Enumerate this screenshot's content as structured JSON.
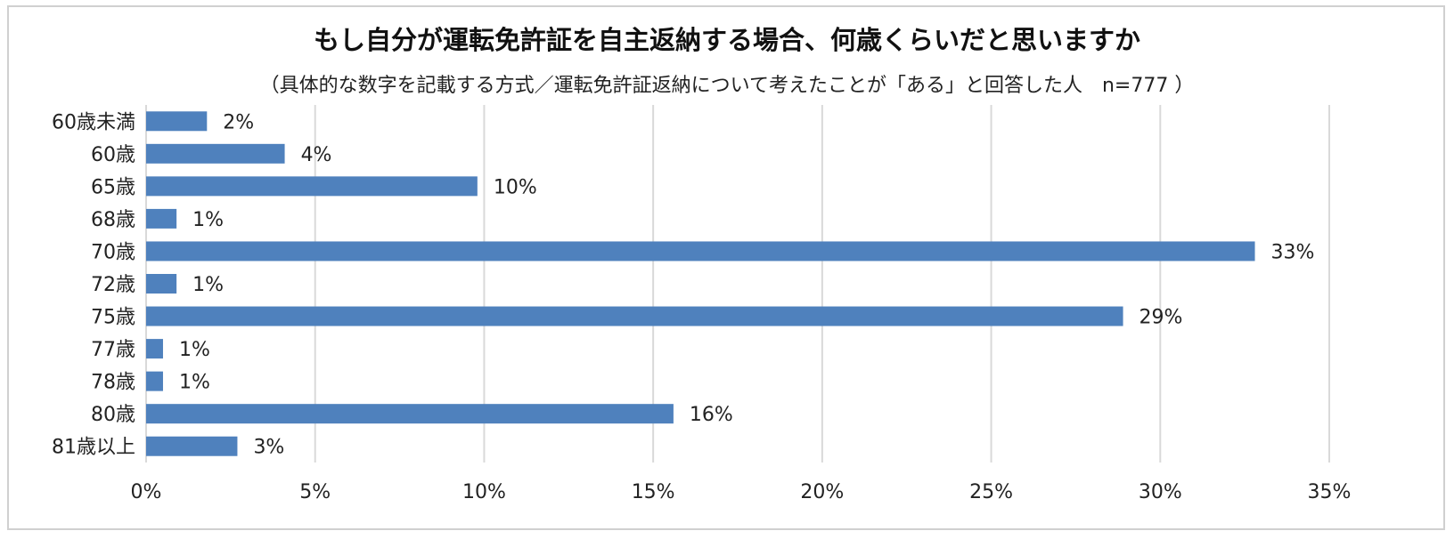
{
  "chart_data": {
    "type": "bar",
    "orientation": "horizontal",
    "title": "もし自分が運転免許証を自主返納する場合、何歳くらいだと思いますか",
    "subtitle": "（具体的な数字を記載する方式／運転免許証返納について考えたことが「ある」と回答した人　n=777 ）",
    "categories": [
      "60歳未満",
      "60歳",
      "65歳",
      "68歳",
      "70歳",
      "72歳",
      "75歳",
      "77歳",
      "78歳",
      "80歳",
      "81歳以上"
    ],
    "values": [
      1.8,
      4.1,
      9.8,
      0.9,
      32.8,
      0.9,
      28.9,
      0.5,
      0.5,
      15.6,
      2.7
    ],
    "data_labels": [
      "2%",
      "4%",
      "10%",
      "1%",
      "33%",
      "1%",
      "29%",
      "1%",
      "1%",
      "16%",
      "3%"
    ],
    "xlim": [
      0,
      35
    ],
    "x_ticks": [
      0,
      5,
      10,
      15,
      20,
      25,
      30,
      35
    ],
    "x_tick_labels": [
      "0%",
      "5%",
      "10%",
      "15%",
      "20%",
      "25%",
      "30%",
      "35%"
    ],
    "grid": "vertical",
    "legend": "none",
    "bar_color": "#4f81bd",
    "grid_color": "#d9d9d9"
  }
}
